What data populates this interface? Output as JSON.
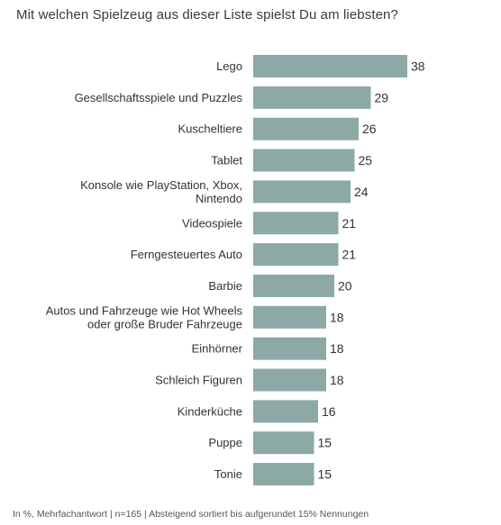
{
  "chart_data": {
    "type": "bar",
    "orientation": "horizontal",
    "title": "Mit welchen Spielzeug aus dieser Liste spielst Du am liebsten?",
    "categories": [
      "Lego",
      "Gesellschaftsspiele und Puzzles",
      "Kuscheltiere",
      "Tablet",
      "Konsole wie PlayStation, Xbox, Nintendo",
      "Videospiele",
      "Ferngesteuertes Auto",
      "Barbie",
      "Autos und Fahrzeuge wie Hot Wheels oder große Bruder Fahrzeuge",
      "Einhörner",
      "Schleich Figuren",
      "Kinderküche",
      "Puppe",
      "Tonie"
    ],
    "category_lines": [
      [
        "Lego"
      ],
      [
        "Gesellschaftsspiele und Puzzles"
      ],
      [
        "Kuscheltiere"
      ],
      [
        "Tablet"
      ],
      [
        "Konsole wie PlayStation, Xbox,",
        "Nintendo"
      ],
      [
        "Videospiele"
      ],
      [
        "Ferngesteuertes Auto"
      ],
      [
        "Barbie"
      ],
      [
        "Autos und Fahrzeuge wie Hot Wheels",
        "oder große Bruder Fahrzeuge"
      ],
      [
        "Einhörner"
      ],
      [
        "Schleich Figuren"
      ],
      [
        "Kinderküche"
      ],
      [
        "Puppe"
      ],
      [
        "Tonie"
      ]
    ],
    "values": [
      38,
      29,
      26,
      25,
      24,
      21,
      21,
      20,
      18,
      18,
      18,
      16,
      15,
      15
    ],
    "xlim": [
      0,
      38
    ],
    "bar_color": "#8ca9a6",
    "grid": false,
    "legend": "none",
    "footnote": "In %, Mehrfachantwort | n=165 | Absteigend sortiert bis aufgerundet 15% Nennungen"
  }
}
